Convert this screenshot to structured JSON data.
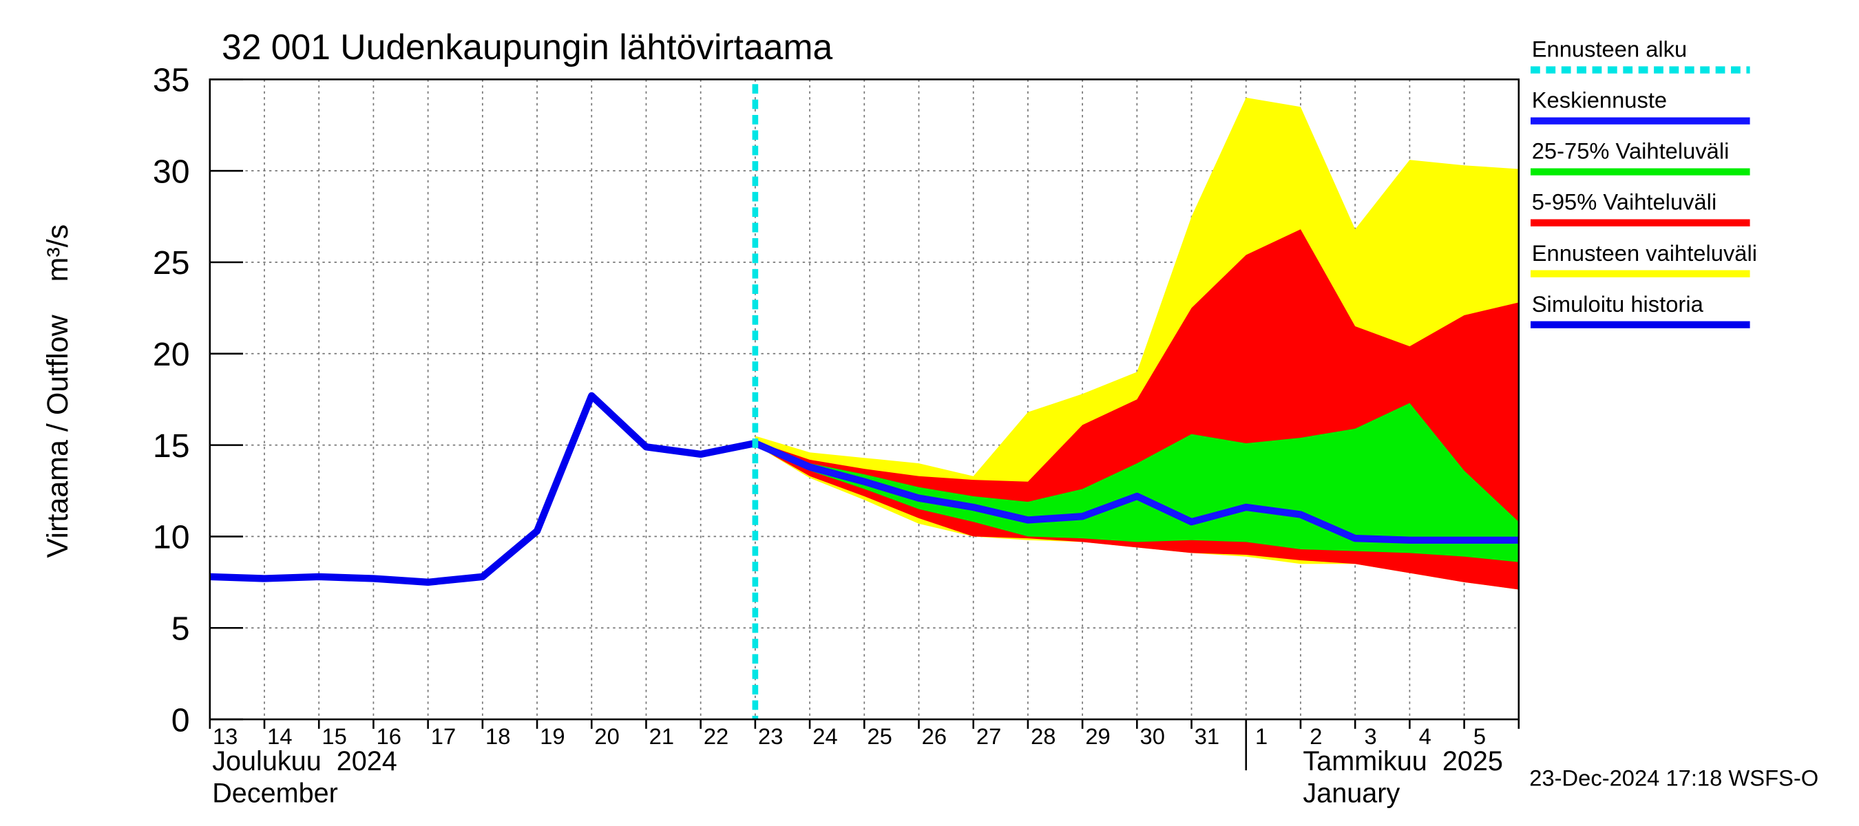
{
  "chart_data": {
    "type": "forecast",
    "title": "32 001 Uudenkaupungin lähtövirtaama",
    "y_label": "Virtaama / Outflow    m³/s",
    "footer": "23-Dec-2024 17:18 WSFS-O",
    "categories": [
      "13",
      "14",
      "15",
      "16",
      "17",
      "18",
      "19",
      "20",
      "21",
      "22",
      "23",
      "24",
      "25",
      "26",
      "27",
      "28",
      "29",
      "30",
      "31",
      "1",
      "2",
      "3",
      "4",
      "5",
      null
    ],
    "months": [
      {
        "name": "Joulukuu  2024",
        "en": "December",
        "start": "13"
      },
      {
        "name": "Tammikuu  2025",
        "en": "January",
        "start": "1"
      }
    ],
    "forecast_start": {
      "name": "Ennusteen alku",
      "color": "#00e5e5",
      "x": "23"
    },
    "ylim": [
      0,
      35
    ],
    "yticks": [
      0,
      5,
      10,
      15,
      20,
      25,
      30,
      35
    ],
    "grid": true,
    "series": [
      {
        "name": "Ennusteen vaihteluväli",
        "color": "#ffff00",
        "kind": "band",
        "low": [
          null,
          null,
          null,
          null,
          null,
          null,
          null,
          null,
          null,
          null,
          15.0,
          13.2,
          12.0,
          10.7,
          10.0,
          9.8,
          9.7,
          9.4,
          9.1,
          8.9,
          8.5,
          8.5,
          8.0,
          7.5,
          7.1
        ],
        "high": [
          null,
          null,
          null,
          null,
          null,
          null,
          null,
          null,
          null,
          null,
          15.5,
          14.6,
          14.3,
          14.0,
          13.3,
          16.8,
          17.8,
          19.0,
          27.5,
          34.0,
          33.5,
          26.8,
          30.6,
          30.3,
          30.1
        ]
      },
      {
        "name": "5-95% Vaihteluväli",
        "color": "#ff0000",
        "kind": "band",
        "low": [
          null,
          null,
          null,
          null,
          null,
          null,
          null,
          null,
          null,
          null,
          15.0,
          13.3,
          12.2,
          11.0,
          10.0,
          9.9,
          9.7,
          9.4,
          9.1,
          9.0,
          8.7,
          8.5,
          8.0,
          7.5,
          7.1
        ],
        "high": [
          null,
          null,
          null,
          null,
          null,
          null,
          null,
          null,
          null,
          null,
          15.2,
          14.2,
          13.7,
          13.3,
          13.1,
          13.0,
          16.1,
          17.5,
          22.5,
          25.4,
          26.8,
          21.5,
          20.4,
          22.1,
          22.8
        ]
      },
      {
        "name": "25-75% Vaihteluväli",
        "color": "#00ee00",
        "kind": "band",
        "low": [
          null,
          null,
          null,
          null,
          null,
          null,
          null,
          null,
          null,
          null,
          15.1,
          13.6,
          12.6,
          11.5,
          10.8,
          10.0,
          9.9,
          9.7,
          9.8,
          9.7,
          9.3,
          9.2,
          9.1,
          8.9,
          8.6
        ],
        "high": [
          null,
          null,
          null,
          null,
          null,
          null,
          null,
          null,
          null,
          null,
          15.1,
          14.0,
          13.4,
          12.7,
          12.2,
          11.9,
          12.6,
          14.0,
          15.6,
          15.1,
          15.4,
          15.9,
          17.3,
          13.6,
          10.8
        ]
      },
      {
        "name": "Keskiennuste",
        "color": "#1414ff",
        "kind": "line",
        "values": [
          null,
          null,
          null,
          null,
          null,
          null,
          null,
          null,
          null,
          null,
          15.1,
          13.8,
          13.0,
          12.1,
          11.6,
          10.9,
          11.1,
          12.2,
          10.8,
          11.6,
          11.2,
          9.9,
          9.8,
          9.8,
          9.8
        ]
      },
      {
        "name": "Simuloitu historia",
        "color": "#0000ee",
        "kind": "line",
        "values": [
          7.8,
          7.7,
          7.8,
          7.7,
          7.5,
          7.8,
          10.3,
          17.7,
          14.9,
          14.5,
          15.1,
          null,
          null,
          null,
          null,
          null,
          null,
          null,
          null,
          null,
          null,
          null,
          null,
          null,
          null
        ]
      }
    ]
  }
}
